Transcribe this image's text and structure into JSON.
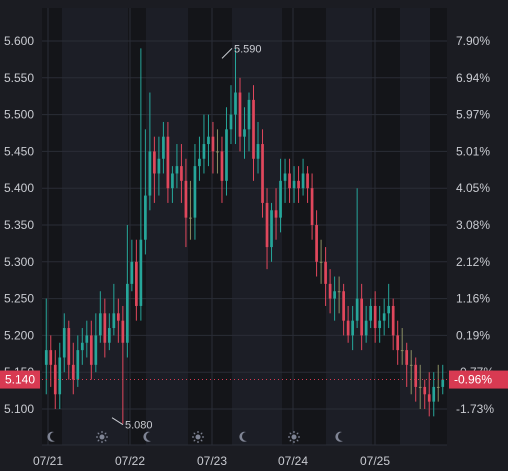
{
  "chart_data": {
    "type": "candlestick",
    "title": "",
    "xlabel": "",
    "ylabel": "",
    "ylim": [
      5.06,
      5.63
    ],
    "y_ticks_left": [
      "5.600",
      "5.550",
      "5.500",
      "5.450",
      "5.400",
      "5.350",
      "5.300",
      "5.250",
      "5.200",
      "5.150",
      "5.100"
    ],
    "y_ticks_right": [
      "7.90%",
      "6.94%",
      "5.97%",
      "5.01%",
      "4.05%",
      "3.08%",
      "2.12%",
      "1.16%",
      "0.19%",
      "-0.77%",
      "-1.73%"
    ],
    "x_ticks": [
      "07/21",
      "07/22",
      "07/23",
      "07/24",
      "07/25"
    ],
    "last_price": {
      "price": "5.140",
      "change": "-0.96%"
    },
    "annotations": {
      "high": "5.590",
      "low": "5.080"
    },
    "session_icons": [
      "moon-icon",
      "sun-icon",
      "moon-icon",
      "sun-icon",
      "moon-icon",
      "sun-icon",
      "moon-icon"
    ],
    "grid": true,
    "series": [
      {
        "close": [
          5.18,
          5.16,
          5.12,
          5.17,
          5.21,
          5.16,
          5.14,
          5.18,
          5.19,
          5.2,
          5.16,
          5.2,
          5.23,
          5.19,
          5.21,
          5.23,
          5.22,
          5.19,
          5.27,
          5.3,
          5.24,
          5.33,
          5.39,
          5.45,
          5.42,
          5.44,
          5.47,
          5.4,
          5.42,
          5.43,
          5.41,
          5.36,
          5.36,
          5.43,
          5.44,
          5.46,
          5.47,
          5.45,
          5.45,
          5.41,
          5.48,
          5.5,
          5.53,
          5.47,
          5.48,
          5.52,
          5.44,
          5.46,
          5.38,
          5.32,
          5.37,
          5.36,
          5.41,
          5.42,
          5.4,
          5.41,
          5.4,
          5.42,
          5.4,
          5.35,
          5.3,
          5.3,
          5.27,
          5.25,
          5.26,
          5.26,
          5.22,
          5.2,
          5.22,
          5.25,
          5.2,
          5.22,
          5.24,
          5.21,
          5.22,
          5.23,
          5.24,
          5.2,
          5.18,
          5.18,
          5.16,
          5.16,
          5.13,
          5.13,
          5.12,
          5.11,
          5.13,
          5.13,
          5.14
        ],
        "open": [
          5.16,
          5.18,
          5.16,
          5.12,
          5.17,
          5.21,
          5.16,
          5.14,
          5.18,
          5.19,
          5.2,
          5.16,
          5.2,
          5.23,
          5.19,
          5.21,
          5.23,
          5.22,
          5.19,
          5.27,
          5.3,
          5.24,
          5.33,
          5.39,
          5.45,
          5.42,
          5.44,
          5.47,
          5.4,
          5.42,
          5.43,
          5.41,
          5.36,
          5.36,
          5.43,
          5.44,
          5.46,
          5.47,
          5.45,
          5.45,
          5.41,
          5.48,
          5.5,
          5.53,
          5.47,
          5.48,
          5.52,
          5.44,
          5.46,
          5.38,
          5.32,
          5.37,
          5.36,
          5.41,
          5.42,
          5.4,
          5.41,
          5.4,
          5.42,
          5.4,
          5.35,
          5.3,
          5.3,
          5.27,
          5.25,
          5.26,
          5.26,
          5.22,
          5.2,
          5.22,
          5.25,
          5.2,
          5.22,
          5.24,
          5.21,
          5.22,
          5.23,
          5.24,
          5.2,
          5.18,
          5.18,
          5.16,
          5.16,
          5.13,
          5.13,
          5.12,
          5.11,
          5.13,
          5.13
        ],
        "high": [
          5.25,
          5.2,
          5.18,
          5.19,
          5.23,
          5.22,
          5.19,
          5.2,
          5.21,
          5.22,
          5.22,
          5.23,
          5.26,
          5.25,
          5.23,
          5.27,
          5.25,
          5.24,
          5.35,
          5.33,
          5.33,
          5.59,
          5.48,
          5.53,
          5.47,
          5.47,
          5.49,
          5.49,
          5.43,
          5.46,
          5.46,
          5.44,
          5.41,
          5.46,
          5.47,
          5.5,
          5.5,
          5.49,
          5.48,
          5.47,
          5.51,
          5.54,
          5.59,
          5.55,
          5.51,
          5.53,
          5.54,
          5.49,
          5.48,
          5.4,
          5.38,
          5.4,
          5.44,
          5.44,
          5.44,
          5.43,
          5.43,
          5.44,
          5.43,
          5.42,
          5.37,
          5.33,
          5.32,
          5.29,
          5.28,
          5.28,
          5.27,
          5.24,
          5.24,
          5.4,
          5.27,
          5.24,
          5.25,
          5.26,
          5.24,
          5.25,
          5.27,
          5.25,
          5.22,
          5.21,
          5.19,
          5.18,
          5.17,
          5.16,
          5.14,
          5.15,
          5.15,
          5.16,
          5.16
        ],
        "low": [
          5.12,
          5.13,
          5.1,
          5.1,
          5.15,
          5.14,
          5.12,
          5.13,
          5.16,
          5.17,
          5.14,
          5.15,
          5.19,
          5.17,
          5.18,
          5.2,
          5.19,
          5.08,
          5.17,
          5.26,
          5.22,
          5.22,
          5.31,
          5.37,
          5.38,
          5.39,
          5.42,
          5.38,
          5.38,
          5.4,
          5.38,
          5.32,
          5.33,
          5.33,
          5.41,
          5.42,
          5.43,
          5.42,
          5.42,
          5.38,
          5.39,
          5.46,
          5.46,
          5.45,
          5.44,
          5.45,
          5.41,
          5.42,
          5.36,
          5.29,
          5.3,
          5.33,
          5.34,
          5.38,
          5.38,
          5.38,
          5.38,
          5.39,
          5.38,
          5.33,
          5.28,
          5.27,
          5.24,
          5.23,
          5.22,
          5.23,
          5.2,
          5.19,
          5.18,
          5.21,
          5.18,
          5.19,
          5.21,
          5.19,
          5.19,
          5.2,
          5.21,
          5.18,
          5.16,
          5.16,
          5.13,
          5.12,
          5.11,
          5.1,
          5.1,
          5.09,
          5.09,
          5.11,
          5.12
        ]
      }
    ],
    "colors": {
      "up": "#26a69a",
      "down": "#e0475c",
      "neutral": "#8a8f63",
      "badge": "#d83a52",
      "background": "#1b1c22",
      "session_band": "#141519",
      "grid": "#2a2d36",
      "text": "#c9cbd1"
    }
  }
}
